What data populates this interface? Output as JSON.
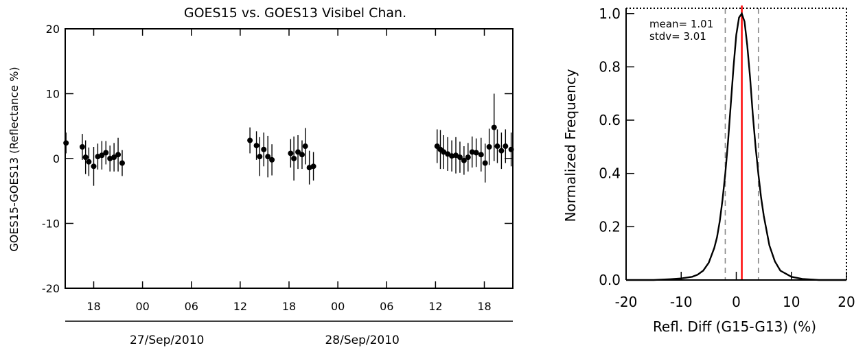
{
  "chart_data": [
    {
      "type": "scatter",
      "title": "GOES15 vs. GOES13 Visibel Chan.",
      "ylabel": "GOES15-GOES13 (Reflectance %)",
      "xlabel": "",
      "ylim": [
        -20,
        20
      ],
      "xlim": [
        14.5,
        69.5
      ],
      "yticks": [
        20,
        10,
        0,
        -10,
        -20
      ],
      "xticks": [
        {
          "x": 18,
          "label": "18"
        },
        {
          "x": 24,
          "label": "00"
        },
        {
          "x": 30,
          "label": "06"
        },
        {
          "x": 36,
          "label": "12"
        },
        {
          "x": 42,
          "label": "18"
        },
        {
          "x": 48,
          "label": "00"
        },
        {
          "x": 54,
          "label": "06"
        },
        {
          "x": 60,
          "label": "12"
        },
        {
          "x": 66,
          "label": "18"
        }
      ],
      "date_labels": [
        {
          "x": 27,
          "label": "27/Sep/2010"
        },
        {
          "x": 51,
          "label": "28/Sep/2010"
        }
      ],
      "grid": false,
      "points": [
        {
          "x": 14.6,
          "y": 2.4,
          "err": 1.6
        },
        {
          "x": 16.6,
          "y": 1.8,
          "err": 2.0
        },
        {
          "x": 17.0,
          "y": 0.2,
          "err": 2.6
        },
        {
          "x": 17.4,
          "y": -0.5,
          "err": 2.2
        },
        {
          "x": 18.0,
          "y": -1.2,
          "err": 3.0
        },
        {
          "x": 18.5,
          "y": 0.3,
          "err": 2.0
        },
        {
          "x": 19.0,
          "y": 0.5,
          "err": 2.2
        },
        {
          "x": 19.5,
          "y": 0.9,
          "err": 1.8
        },
        {
          "x": 20.0,
          "y": 0.0,
          "err": 2.0
        },
        {
          "x": 20.5,
          "y": 0.2,
          "err": 2.2
        },
        {
          "x": 21.0,
          "y": 0.6,
          "err": 2.6
        },
        {
          "x": 21.5,
          "y": -0.7,
          "err": 2.0
        },
        {
          "x": 37.2,
          "y": 2.8,
          "err": 2.0
        },
        {
          "x": 38.0,
          "y": 2.0,
          "err": 2.2
        },
        {
          "x": 38.4,
          "y": 0.3,
          "err": 3.0
        },
        {
          "x": 38.9,
          "y": 1.4,
          "err": 2.6
        },
        {
          "x": 39.4,
          "y": 0.3,
          "err": 3.2
        },
        {
          "x": 39.9,
          "y": -0.2,
          "err": 2.4
        },
        {
          "x": 42.2,
          "y": 0.8,
          "err": 2.2
        },
        {
          "x": 42.6,
          "y": 0.0,
          "err": 3.4
        },
        {
          "x": 43.1,
          "y": 1.0,
          "err": 2.6
        },
        {
          "x": 43.6,
          "y": 0.6,
          "err": 2.2
        },
        {
          "x": 44.0,
          "y": 1.9,
          "err": 2.8
        },
        {
          "x": 44.5,
          "y": -1.4,
          "err": 2.6
        },
        {
          "x": 45.0,
          "y": -1.2,
          "err": 2.2
        },
        {
          "x": 60.2,
          "y": 1.9,
          "err": 2.6
        },
        {
          "x": 60.6,
          "y": 1.4,
          "err": 3.0
        },
        {
          "x": 61.0,
          "y": 1.0,
          "err": 2.6
        },
        {
          "x": 61.5,
          "y": 0.7,
          "err": 2.6
        },
        {
          "x": 62.0,
          "y": 0.4,
          "err": 2.4
        },
        {
          "x": 62.5,
          "y": 0.5,
          "err": 2.8
        },
        {
          "x": 63.0,
          "y": 0.2,
          "err": 2.4
        },
        {
          "x": 63.5,
          "y": -0.3,
          "err": 2.2
        },
        {
          "x": 64.0,
          "y": 0.2,
          "err": 2.2
        },
        {
          "x": 64.5,
          "y": 1.0,
          "err": 2.4
        },
        {
          "x": 65.0,
          "y": 0.9,
          "err": 2.2
        },
        {
          "x": 65.6,
          "y": 0.6,
          "err": 2.6
        },
        {
          "x": 66.1,
          "y": -0.7,
          "err": 3.0
        },
        {
          "x": 66.6,
          "y": 1.8,
          "err": 2.8
        },
        {
          "x": 67.2,
          "y": 4.8,
          "err": 5.2
        },
        {
          "x": 67.6,
          "y": 1.9,
          "err": 2.6
        },
        {
          "x": 68.1,
          "y": 1.2,
          "err": 2.8
        },
        {
          "x": 68.6,
          "y": 1.9,
          "err": 2.6
        },
        {
          "x": 69.3,
          "y": 1.4,
          "err": 2.6
        }
      ]
    },
    {
      "type": "line",
      "title": "",
      "xlabel": "Refl. Diff (G15-G13) (%)",
      "ylabel": "Normalized Frequency",
      "xlim": [
        -20,
        20
      ],
      "ylim": [
        0,
        1.02
      ],
      "xticks": [
        -20,
        -10,
        0,
        10,
        20
      ],
      "yticks": [
        0.0,
        0.2,
        0.4,
        0.6,
        0.8,
        1.0
      ],
      "ytick_labels": [
        "0.0",
        "0.2",
        "0.4",
        "0.6",
        "0.8",
        "1.0"
      ],
      "grid": false,
      "annotations": {
        "mean": "mean= 1.01",
        "stdv": "stdv= 3.01"
      },
      "mean": 1.01,
      "stdv": 3.01,
      "dashed_lines": [
        -2.0,
        4.02
      ],
      "red_line": 1.01,
      "series": [
        {
          "x": [
            -20,
            -15,
            -12,
            -10,
            -8,
            -7,
            -6,
            -5,
            -4,
            -3.5,
            -3,
            -2.5,
            -2,
            -1.5,
            -1,
            -0.5,
            0,
            0.5,
            1.0,
            1.5,
            2,
            2.5,
            3,
            3.5,
            4,
            4.5,
            5,
            6,
            7,
            8,
            10,
            12,
            15,
            20
          ],
          "y": [
            0.0,
            0.0,
            0.003,
            0.006,
            0.012,
            0.02,
            0.035,
            0.065,
            0.12,
            0.16,
            0.22,
            0.3,
            0.4,
            0.52,
            0.66,
            0.8,
            0.92,
            0.985,
            1.0,
            0.97,
            0.88,
            0.76,
            0.62,
            0.5,
            0.4,
            0.31,
            0.24,
            0.13,
            0.07,
            0.035,
            0.012,
            0.004,
            0.0,
            0.0
          ]
        }
      ]
    }
  ]
}
